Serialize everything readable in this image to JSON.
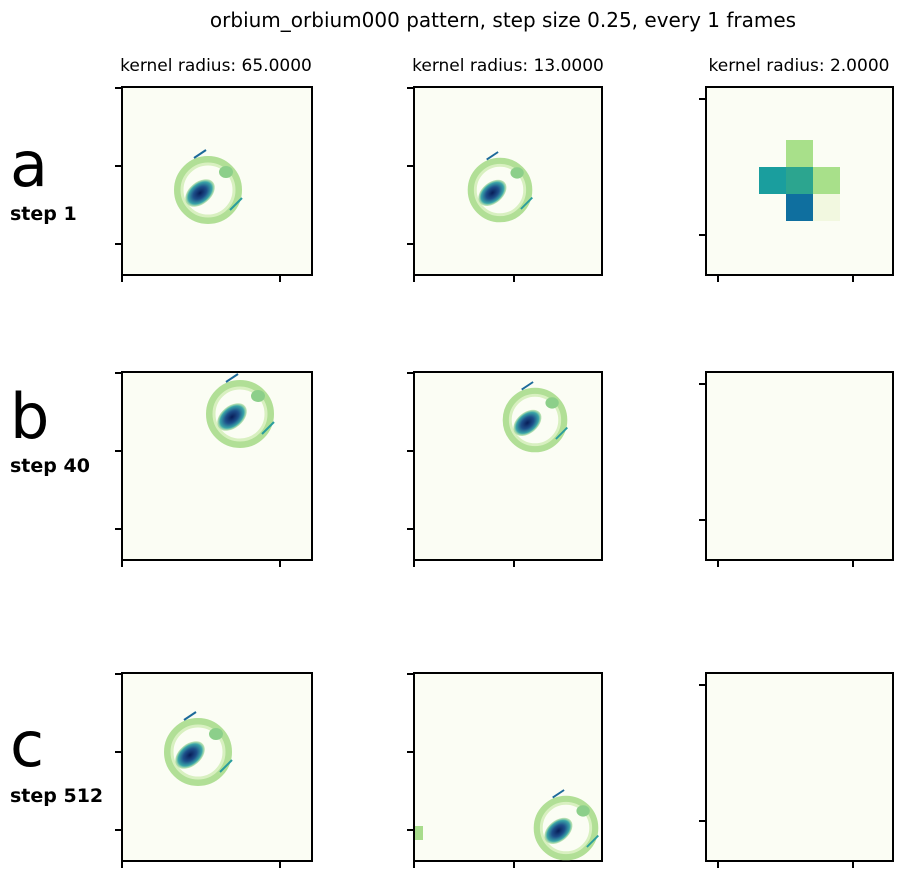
{
  "title": "orbium_orbium000 pattern, step size 0.25, every 1 frames",
  "columns": [
    "kernel radius: 65.0000",
    "kernel radius: 13.0000",
    "kernel radius: 2.0000"
  ],
  "rows": [
    {
      "letter": "a",
      "step": "step 1"
    },
    {
      "letter": "b",
      "step": "step 40"
    },
    {
      "letter": "c",
      "step": "step 512"
    }
  ]
}
